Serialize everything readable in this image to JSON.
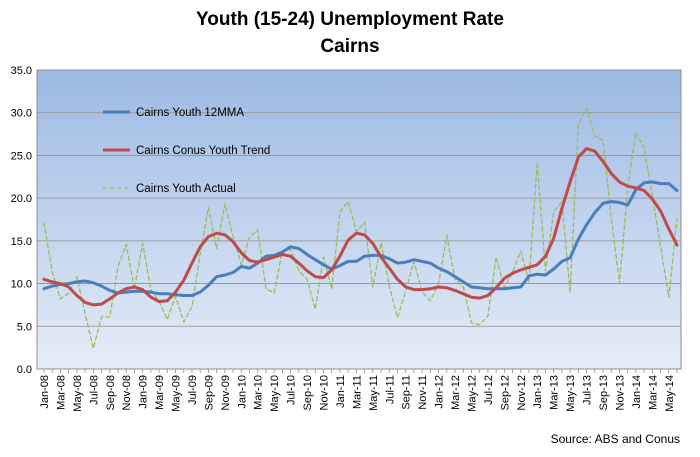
{
  "chart_data": {
    "type": "line",
    "title": "Youth (15-24) Unemployment Rate",
    "subtitle": "Cairns",
    "source": "Source: ABS and Conus",
    "ylim": [
      0,
      35
    ],
    "yticks": [
      "0.0",
      "5.0",
      "10.0",
      "15.0",
      "20.0",
      "25.0",
      "30.0",
      "35.0"
    ],
    "grid": true,
    "legend_position": "top-left",
    "x": [
      "Jan-08",
      "Feb-08",
      "Mar-08",
      "Apr-08",
      "May-08",
      "Jun-08",
      "Jul-08",
      "Aug-08",
      "Sep-08",
      "Oct-08",
      "Nov-08",
      "Dec-08",
      "Jan-09",
      "Feb-09",
      "Mar-09",
      "Apr-09",
      "May-09",
      "Jun-09",
      "Jul-09",
      "Aug-09",
      "Sep-09",
      "Oct-09",
      "Nov-09",
      "Dec-09",
      "Jan-10",
      "Feb-10",
      "Mar-10",
      "Apr-10",
      "May-10",
      "Jun-10",
      "Jul-10",
      "Aug-10",
      "Sep-10",
      "Oct-10",
      "Nov-10",
      "Dec-10",
      "Jan-11",
      "Feb-11",
      "Mar-11",
      "Apr-11",
      "May-11",
      "Jun-11",
      "Jul-11",
      "Aug-11",
      "Sep-11",
      "Oct-11",
      "Nov-11",
      "Dec-11",
      "Jan-12",
      "Feb-12",
      "Mar-12",
      "Apr-12",
      "May-12",
      "Jun-12",
      "Jul-12",
      "Aug-12",
      "Sep-12",
      "Oct-12",
      "Nov-12",
      "Dec-12",
      "Jan-13",
      "Feb-13",
      "Mar-13",
      "Apr-13",
      "May-13",
      "Jun-13",
      "Jul-13",
      "Aug-13",
      "Sep-13",
      "Oct-13",
      "Nov-13",
      "Dec-13",
      "Jan-14",
      "Feb-14",
      "Mar-14",
      "Apr-14",
      "May-14",
      "Jun-14"
    ],
    "series": [
      {
        "name": "Cairns Youth 12MMA",
        "color": "#4a7ebb",
        "style": "solid",
        "values": [
          9.4,
          9.7,
          9.9,
          10.0,
          10.2,
          10.3,
          10.1,
          9.7,
          9.2,
          8.9,
          9.0,
          9.1,
          9.1,
          9.0,
          8.8,
          8.8,
          8.7,
          8.6,
          8.6,
          9.0,
          9.8,
          10.8,
          11.0,
          11.3,
          12.0,
          11.8,
          12.4,
          13.2,
          13.3,
          13.7,
          14.3,
          14.1,
          13.4,
          12.8,
          12.2,
          11.7,
          12.1,
          12.6,
          12.6,
          13.2,
          13.3,
          13.3,
          12.9,
          12.4,
          12.5,
          12.8,
          12.6,
          12.4,
          11.8,
          11.4,
          10.8,
          10.2,
          9.6,
          9.5,
          9.4,
          9.4,
          9.4,
          9.5,
          9.6,
          10.9,
          11.1,
          11.0,
          11.7,
          12.6,
          13.0,
          15.2,
          16.9,
          18.3,
          19.4,
          19.6,
          19.5,
          19.2,
          21.0,
          21.8,
          21.9,
          21.7,
          21.7,
          20.9
        ]
      },
      {
        "name": "Cairns Conus Youth Trend",
        "color": "#be4b48",
        "style": "solid",
        "values": [
          10.5,
          10.2,
          10.0,
          9.6,
          8.6,
          7.8,
          7.5,
          7.6,
          8.2,
          8.9,
          9.4,
          9.6,
          9.3,
          8.4,
          7.9,
          8.0,
          9.0,
          10.4,
          12.4,
          14.3,
          15.5,
          15.9,
          15.7,
          14.9,
          13.6,
          12.7,
          12.5,
          12.8,
          13.1,
          13.4,
          13.2,
          12.4,
          11.5,
          10.8,
          10.7,
          11.6,
          13.2,
          15.1,
          15.9,
          15.7,
          14.7,
          13.1,
          11.8,
          10.5,
          9.6,
          9.3,
          9.3,
          9.4,
          9.6,
          9.5,
          9.2,
          8.8,
          8.4,
          8.3,
          8.6,
          9.5,
          10.6,
          11.2,
          11.6,
          11.9,
          12.2,
          13.2,
          15.3,
          18.8,
          21.9,
          24.8,
          25.8,
          25.5,
          24.3,
          22.9,
          21.9,
          21.4,
          21.2,
          20.9,
          19.9,
          18.5,
          16.4,
          14.5
        ]
      },
      {
        "name": "Cairns Youth Actual",
        "color": "#9bbb59",
        "style": "dashed",
        "values": [
          17.1,
          11.4,
          8.2,
          8.9,
          10.8,
          6.5,
          2.4,
          6.1,
          6.1,
          12.0,
          14.6,
          9.4,
          14.7,
          9.3,
          7.9,
          5.8,
          8.5,
          5.5,
          7.3,
          13.5,
          18.9,
          14.1,
          19.3,
          15.5,
          12.2,
          15.4,
          16.3,
          9.4,
          8.9,
          13.9,
          14.0,
          11.5,
          10.5,
          7.0,
          13.1,
          9.4,
          18.4,
          19.6,
          16.1,
          17.2,
          9.6,
          14.8,
          9.7,
          6.0,
          9.1,
          12.6,
          9.0,
          8.0,
          10.0,
          15.6,
          10.5,
          9.6,
          5.4,
          5.2,
          6.2,
          13.1,
          9.5,
          11.4,
          13.8,
          10.2,
          24.2,
          11.5,
          18.4,
          19.6,
          9.0,
          28.7,
          30.5,
          27.3,
          26.8,
          17.8,
          10.0,
          21.2,
          27.7,
          25.9,
          20.3,
          14.3,
          8.4,
          17.6
        ]
      }
    ]
  }
}
